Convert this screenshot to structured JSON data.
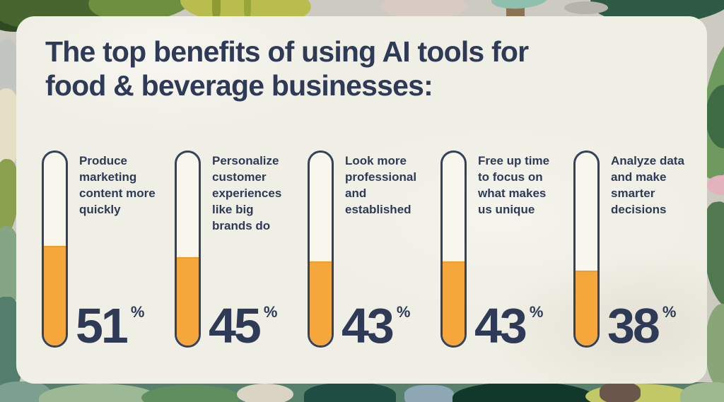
{
  "header": {
    "title": "The top benefits of using AI tools for food & beverage businesses:",
    "title_lines": [
      "The top benefits of using AI tools for",
      "food & beverage businesses:"
    ]
  },
  "benefits": [
    {
      "label": "Produce marketing content more quickly",
      "value": 51,
      "unit": "%"
    },
    {
      "label": "Personalize customer experiences like big brands do",
      "value": 45,
      "unit": "%"
    },
    {
      "label": "Look more professional and established",
      "value": 43,
      "unit": "%"
    },
    {
      "label": "Free up time to focus on what makes us unique",
      "value": 43,
      "unit": "%"
    },
    {
      "label": "Analyze data and make smarter decisions",
      "value": 38,
      "unit": "%"
    }
  ],
  "colors": {
    "accent_orange": "#f6a73b",
    "navy_text": "#2e3a56",
    "tube_outline": "#36415e",
    "card_background": "#f0efe5"
  },
  "chart_data": {
    "type": "bar",
    "title": "The top benefits of using AI tools for food & beverage businesses:",
    "categories": [
      "Produce marketing content more quickly",
      "Personalize customer experiences like big brands do",
      "Look more professional and established",
      "Free up time to focus on what makes us unique",
      "Analyze data and make smarter decisions"
    ],
    "values": [
      51,
      45,
      43,
      43,
      38
    ],
    "unit": "percent",
    "ylim": [
      0,
      100
    ],
    "xlabel": "",
    "ylabel": "",
    "legend": false,
    "style": "vertical thermometer gauges, orange fill (#f6a73b), navy outline (#36415e), value labels beneath each gauge"
  }
}
